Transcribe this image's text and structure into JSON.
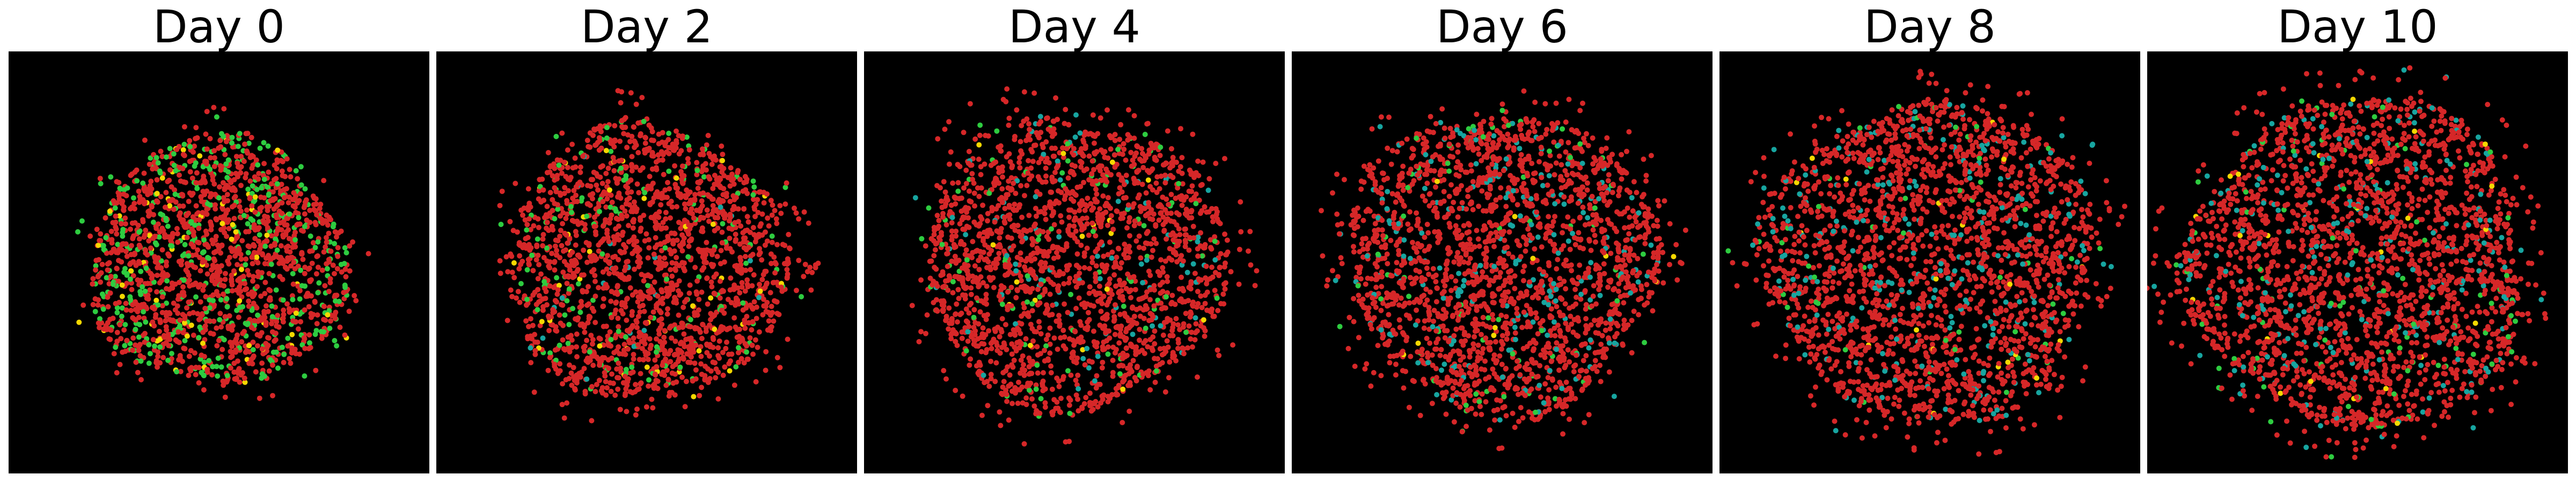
{
  "colors": {
    "background": "#000000",
    "red_cells": "#d62728",
    "green_cells": "#2ecc40",
    "yellow_cells": "#f5d800",
    "teal_cells": "#17a5a0"
  },
  "panels": [
    {
      "title": "Day 0",
      "spread": 0.62,
      "composition": {
        "red": 0.78,
        "green": 0.18,
        "yellow": 0.04,
        "teal": 0.0
      }
    },
    {
      "title": "Day 2",
      "spread": 0.68,
      "composition": {
        "red": 0.9,
        "green": 0.07,
        "yellow": 0.02,
        "teal": 0.01
      }
    },
    {
      "title": "Day 4",
      "spread": 0.73,
      "composition": {
        "red": 0.9,
        "green": 0.04,
        "yellow": 0.01,
        "teal": 0.05
      }
    },
    {
      "title": "Day 6",
      "spread": 0.75,
      "composition": {
        "red": 0.87,
        "green": 0.03,
        "yellow": 0.01,
        "teal": 0.09
      }
    },
    {
      "title": "Day 8",
      "spread": 0.8,
      "composition": {
        "red": 0.86,
        "green": 0.02,
        "yellow": 0.01,
        "teal": 0.11
      }
    },
    {
      "title": "Day 10",
      "spread": 0.82,
      "composition": {
        "red": 0.86,
        "green": 0.03,
        "yellow": 0.01,
        "teal": 0.1
      }
    }
  ]
}
